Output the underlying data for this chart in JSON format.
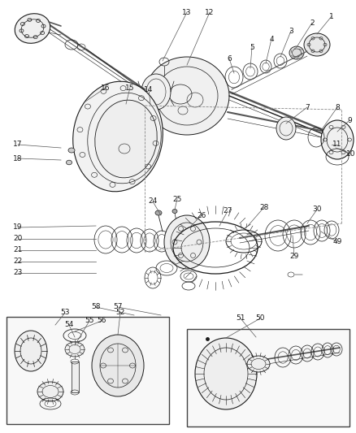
{
  "bg_color": "#ffffff",
  "line_color": "#1a1a1a",
  "fig_width": 4.39,
  "fig_height": 5.33,
  "dpi": 100,
  "label_fs": 6.5,
  "lw": 0.6
}
